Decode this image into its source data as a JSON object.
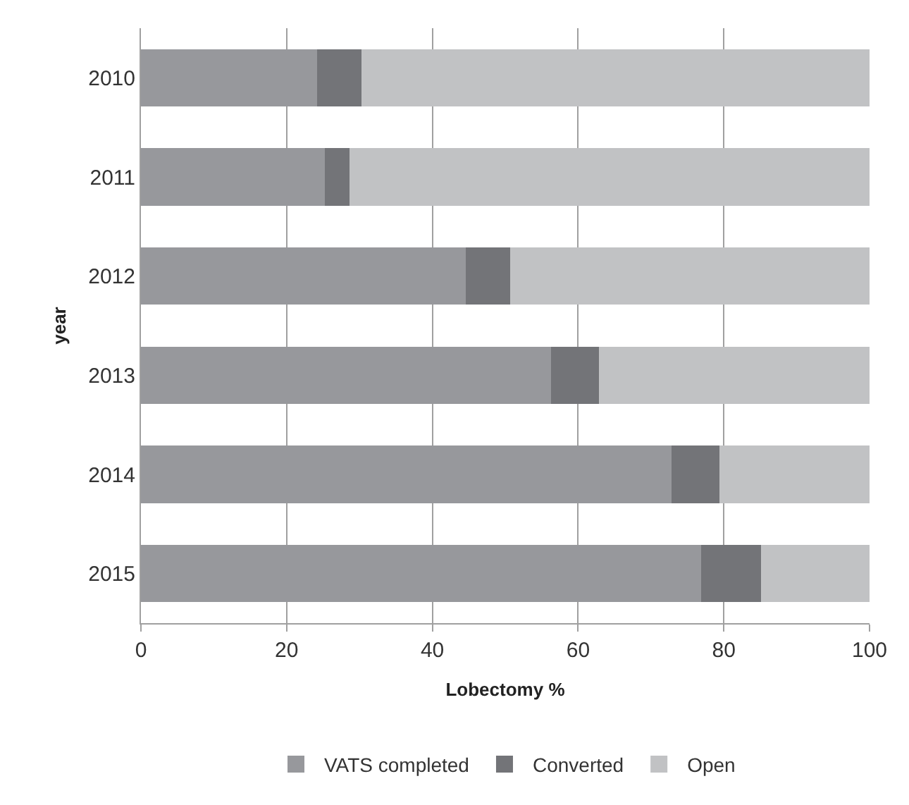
{
  "chart_data": {
    "type": "bar",
    "orientation": "horizontal",
    "stacked": true,
    "categories": [
      "2010",
      "2011",
      "2012",
      "2013",
      "2014",
      "2015"
    ],
    "series": [
      {
        "name": "VATS completed",
        "color": "#97989c",
        "values": [
          24.2,
          25.2,
          44.6,
          56.3,
          72.8,
          76.9
        ]
      },
      {
        "name": "Converted",
        "color": "#737478",
        "values": [
          6.1,
          3.4,
          6.1,
          6.6,
          6.6,
          8.2
        ]
      },
      {
        "name": "Open",
        "color": "#c1c2c4",
        "values": [
          69.7,
          71.4,
          49.3,
          37.1,
          20.6,
          14.9
        ]
      }
    ],
    "xlabel": "Lobectomy %",
    "ylabel": "year",
    "xlim": [
      0,
      100
    ],
    "xticks": [
      0,
      20,
      40,
      60,
      80,
      100
    ],
    "grid": "x",
    "legend": "bottom"
  }
}
